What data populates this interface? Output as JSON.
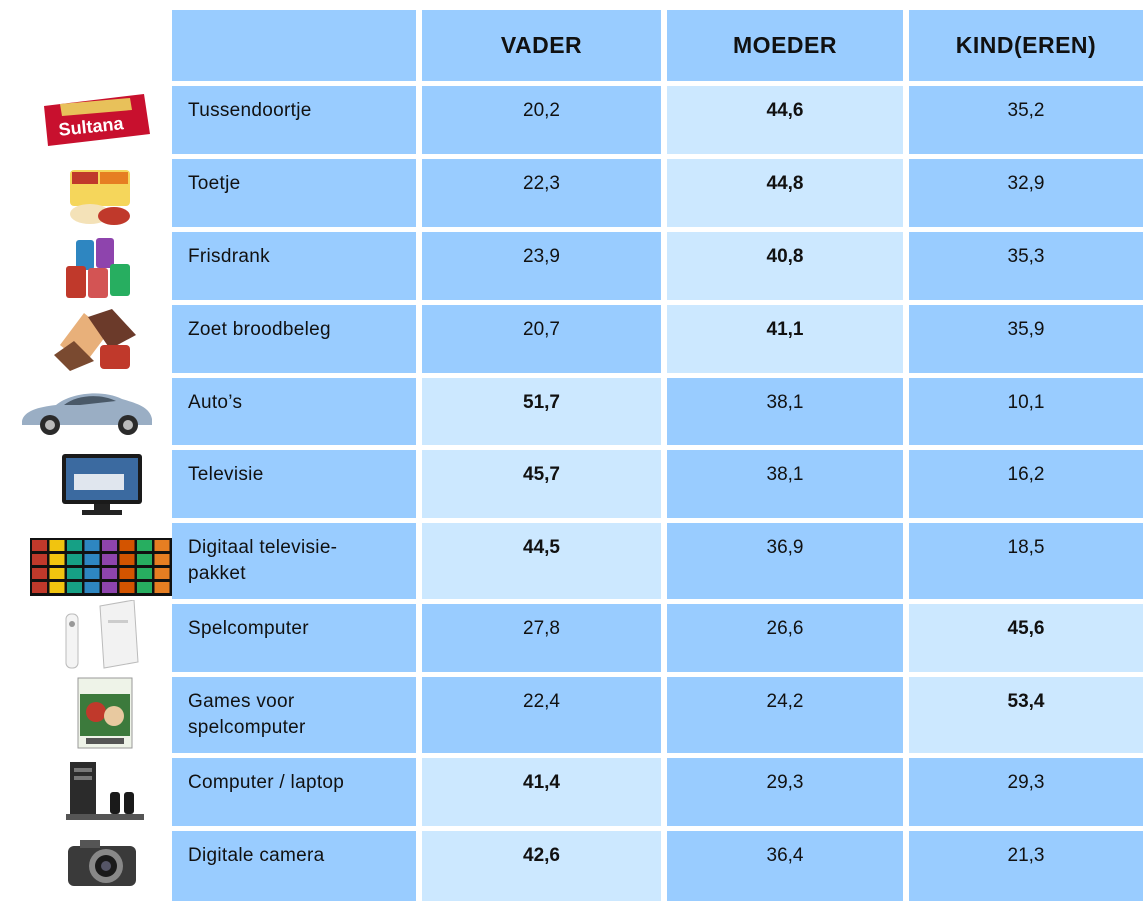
{
  "columns": [
    "VADER",
    "MOEDER",
    "KIND(EREN)"
  ],
  "rows": [
    {
      "label": "Tussendoortje",
      "icon": "sultana-biscuit-icon",
      "values": [
        "20,2",
        "44,6",
        "35,2"
      ],
      "max": 1
    },
    {
      "label": "Toetje",
      "icon": "pudding-dessert-icon",
      "values": [
        "22,3",
        "44,8",
        "32,9"
      ],
      "max": 1
    },
    {
      "label": "Frisdrank",
      "icon": "soda-cans-icon",
      "values": [
        "23,9",
        "40,8",
        "35,3"
      ],
      "max": 1
    },
    {
      "label": "Zoet broodbeleg",
      "icon": "sandwich-spread-icon",
      "values": [
        "20,7",
        "41,1",
        "35,9"
      ],
      "max": 1
    },
    {
      "label": "Auto’s",
      "icon": "car-icon",
      "values": [
        "51,7",
        "38,1",
        "10,1"
      ],
      "max": 0
    },
    {
      "label": "Televisie",
      "icon": "television-icon",
      "values": [
        "45,7",
        "38,1",
        "16,2"
      ],
      "max": 0
    },
    {
      "label": "Digitaal televisie-\npakket",
      "icon": "tv-channels-mosaic-icon",
      "values": [
        "44,5",
        "36,9",
        "18,5"
      ],
      "max": 0
    },
    {
      "label": "Spelcomputer",
      "icon": "game-console-icon",
      "values": [
        "27,8",
        "26,6",
        "45,6"
      ],
      "max": 2
    },
    {
      "label": "Games voor\nspelcomputer",
      "icon": "video-game-box-icon",
      "values": [
        "22,4",
        "24,2",
        "53,4"
      ],
      "max": 2
    },
    {
      "label": "Computer / laptop",
      "icon": "desktop-computer-icon",
      "values": [
        "41,4",
        "29,3",
        "29,3"
      ],
      "max": 0
    },
    {
      "label": "Digitale camera",
      "icon": "digital-camera-icon",
      "values": [
        "42,6",
        "36,4",
        "21,3"
      ],
      "max": 0
    }
  ],
  "colors": {
    "header": "#99ccff",
    "cell": "#99ccff",
    "highlight": "#cce8ff"
  }
}
